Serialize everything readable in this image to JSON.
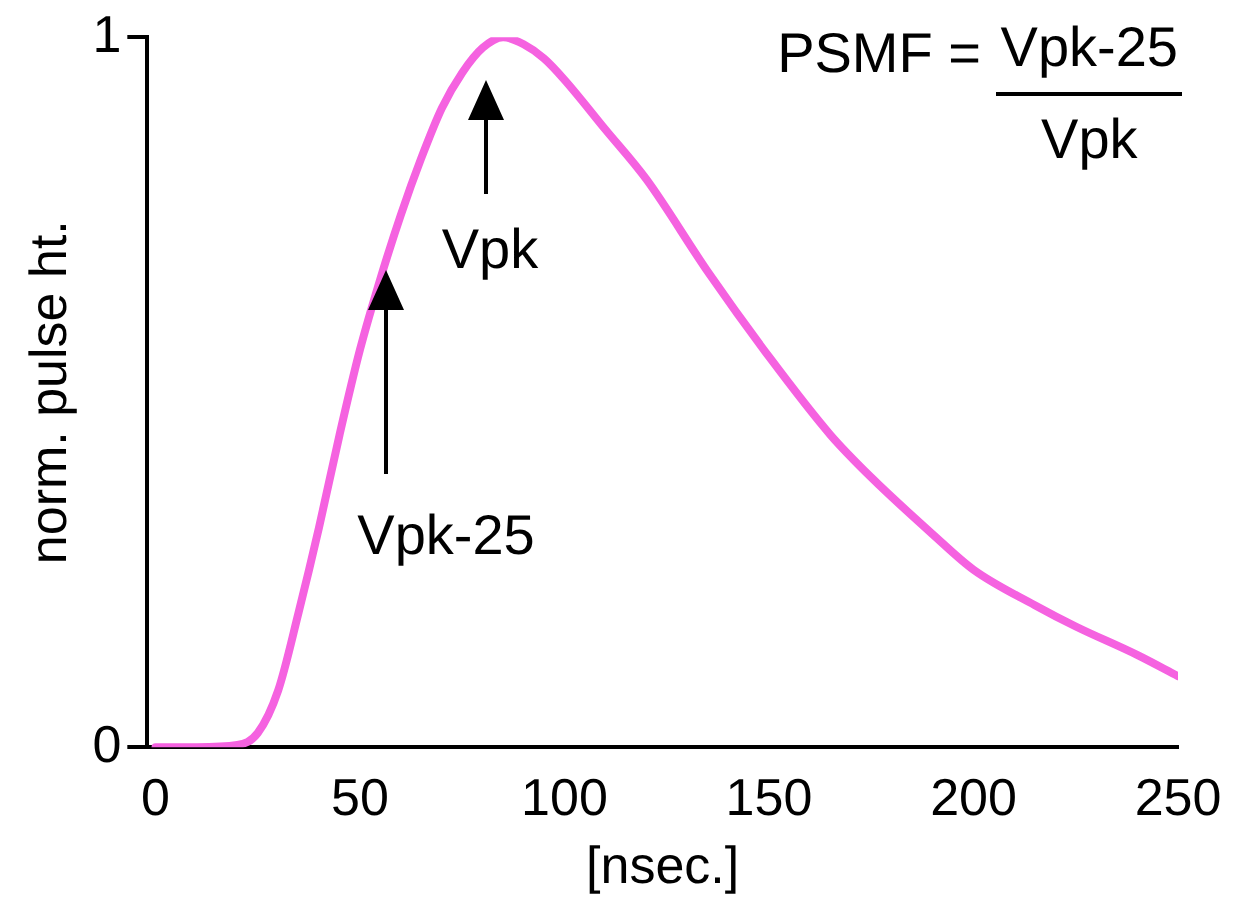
{
  "chart_data": {
    "type": "line",
    "xlabel": "[nsec.]",
    "ylabel": "norm. pulse ht.",
    "x": [
      0,
      10,
      20,
      25,
      30,
      35,
      40,
      45,
      50,
      55,
      60,
      65,
      70,
      75,
      80,
      85,
      90,
      95,
      100,
      110,
      120,
      135,
      150,
      165,
      175,
      190,
      200,
      215,
      225,
      240,
      250
    ],
    "series": [
      {
        "color": "#f562e0",
        "values": [
          0,
          0,
          0.003,
          0.02,
          0.08,
          0.19,
          0.31,
          0.44,
          0.56,
          0.66,
          0.75,
          0.83,
          0.9,
          0.95,
          0.985,
          1,
          0.99,
          0.97,
          0.94,
          0.87,
          0.8,
          0.67,
          0.55,
          0.44,
          0.38,
          0.3,
          0.25,
          0.2,
          0.17,
          0.13,
          0.1
        ]
      }
    ],
    "xlim": [
      -2,
      250
    ],
    "xticks": [
      0,
      50,
      100,
      150,
      200,
      250
    ],
    "ylim": [
      0,
      1
    ],
    "yticks": [
      0,
      1
    ],
    "grid": false,
    "legend": false,
    "marker": "none",
    "line_style": "solid",
    "annotations": [
      "Vpk",
      "Vpk-25",
      "PSMF =",
      "Vpk-25",
      "Vpk"
    ]
  }
}
